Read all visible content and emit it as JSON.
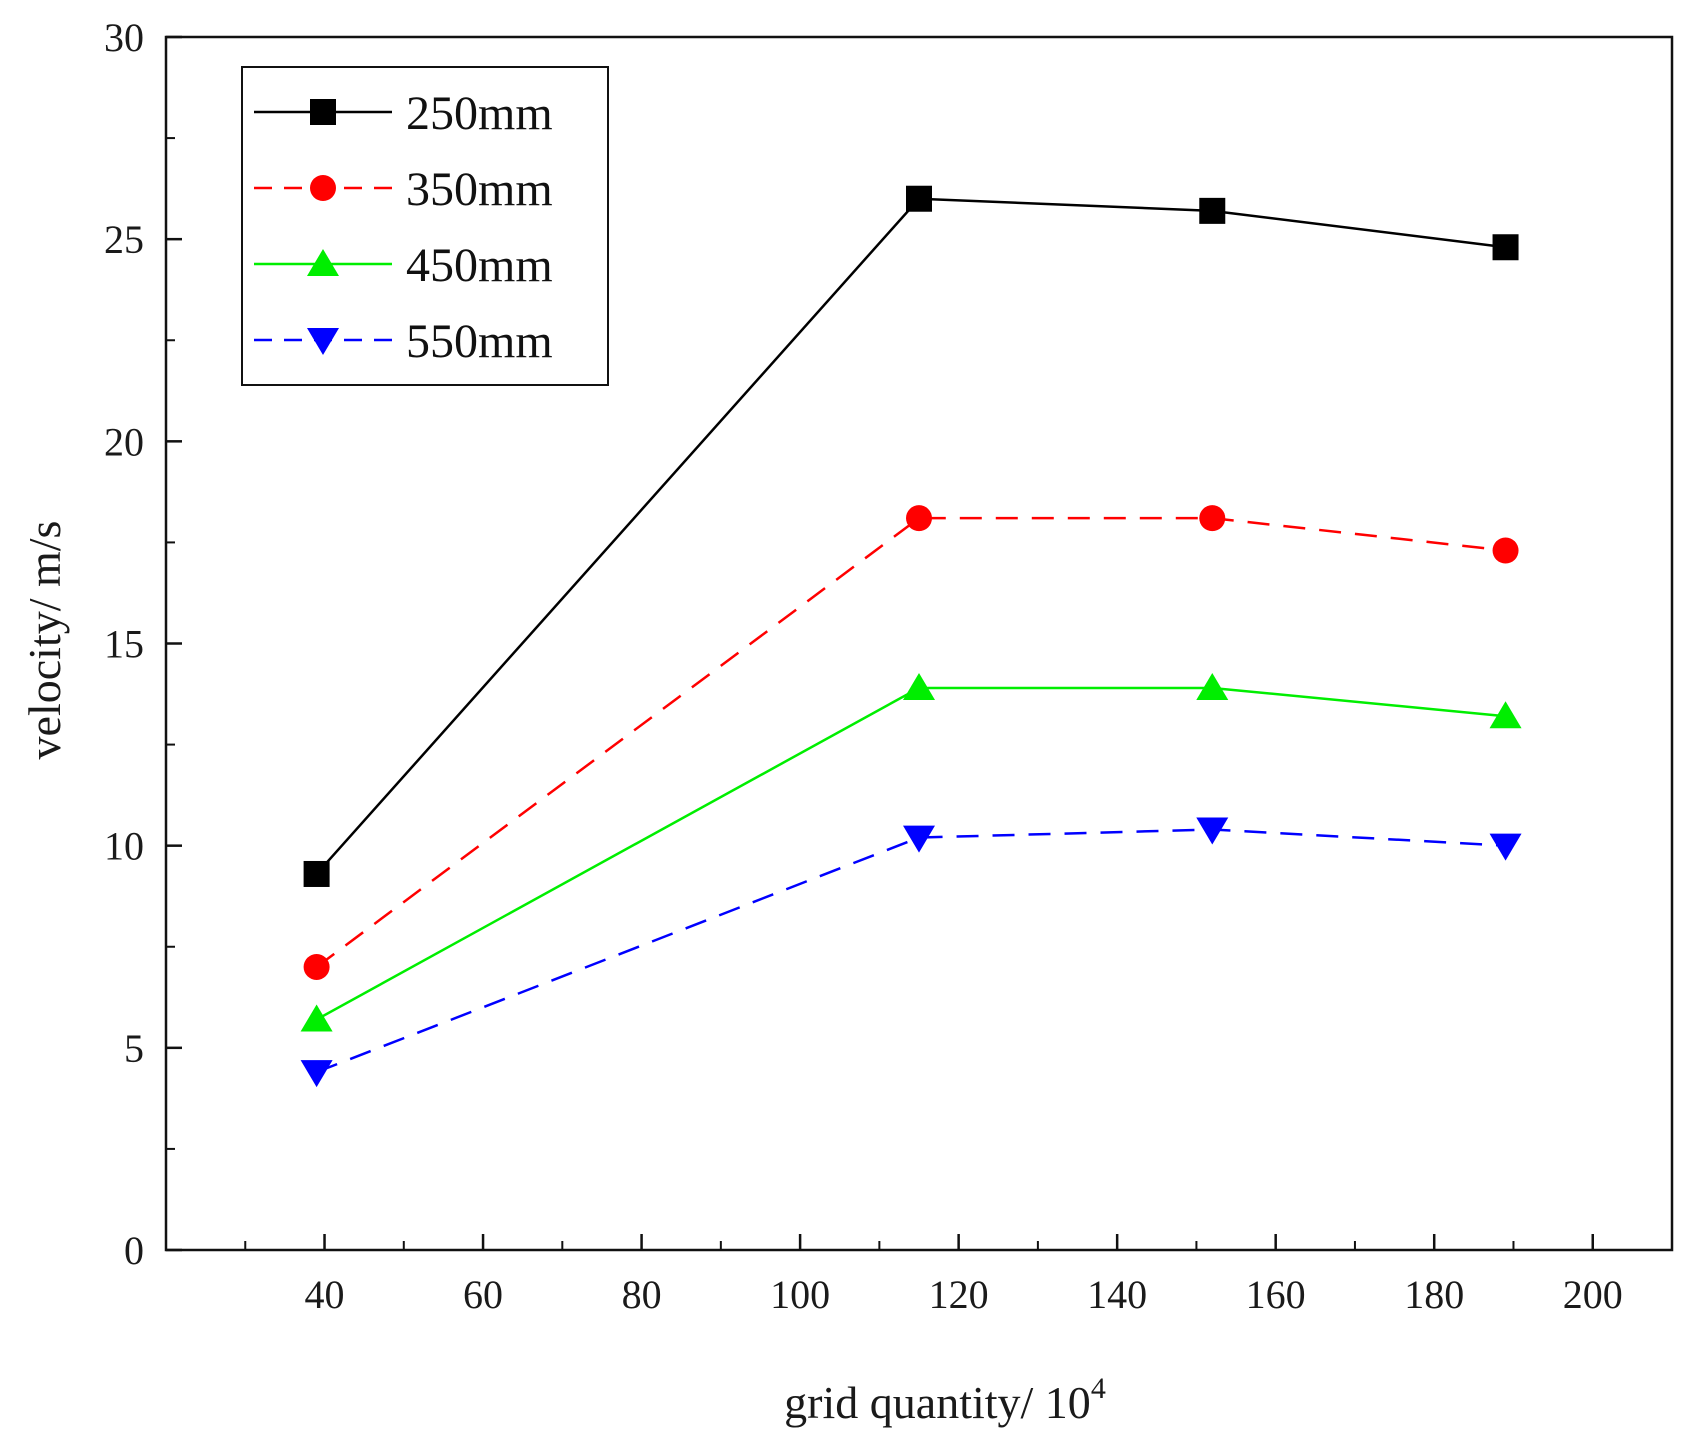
{
  "chart_data": {
    "type": "line",
    "title": "",
    "xlabel": "grid quantity/ 10",
    "xlabel_superscript": "4",
    "ylabel": "velocity/ m/s",
    "xlim": [
      20,
      210
    ],
    "ylim": [
      0,
      30
    ],
    "xticks": [
      40,
      60,
      80,
      100,
      120,
      140,
      160,
      180,
      200
    ],
    "yticks": [
      0,
      5,
      10,
      15,
      20,
      25,
      30
    ],
    "x": [
      39,
      115,
      152,
      189
    ],
    "legend_position": "top-left",
    "series": [
      {
        "name": "250mm",
        "values": [
          9.3,
          26.0,
          25.7,
          24.8
        ],
        "color": "#000000",
        "marker": "square",
        "dash": "solid"
      },
      {
        "name": "350mm",
        "values": [
          7.0,
          18.1,
          18.1,
          17.3
        ],
        "color": "#ff0000",
        "marker": "circle",
        "dash": "dashed"
      },
      {
        "name": "450mm",
        "values": [
          5.7,
          13.9,
          13.9,
          13.2
        ],
        "color": "#00ee00",
        "marker": "triangle-up",
        "dash": "solid"
      },
      {
        "name": "550mm",
        "values": [
          4.4,
          10.2,
          10.4,
          10.0
        ],
        "color": "#0000ff",
        "marker": "triangle-down",
        "dash": "dashed"
      }
    ]
  }
}
